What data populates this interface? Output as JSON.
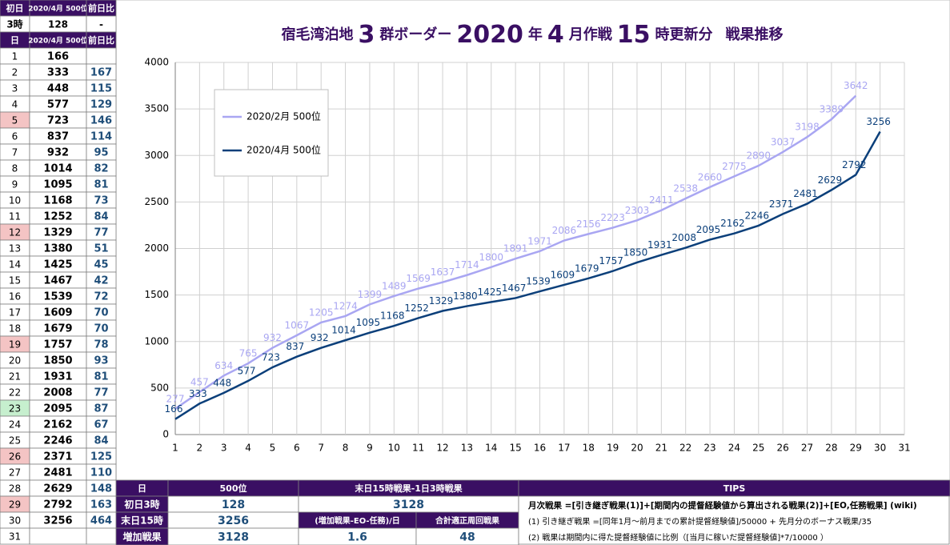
{
  "chart_data": {
    "type": "line",
    "title_parts": [
      "宿毛湾泊地",
      "3",
      "群ボーダー",
      "2020",
      "年",
      "4",
      "月作戦",
      "15",
      "時更新分",
      "戦果推移"
    ],
    "x": [
      1,
      2,
      3,
      4,
      5,
      6,
      7,
      8,
      9,
      10,
      11,
      12,
      13,
      14,
      15,
      16,
      17,
      18,
      19,
      20,
      21,
      22,
      23,
      24,
      25,
      26,
      27,
      28,
      29,
      30
    ],
    "series": [
      {
        "name": "2020/2月 500位",
        "color": "#a9a6f2",
        "values": [
          277,
          457,
          634,
          765,
          932,
          1067,
          1205,
          1274,
          1399,
          1489,
          1569,
          1637,
          1714,
          1800,
          1891,
          1971,
          2086,
          2156,
          2223,
          2303,
          2411,
          2538,
          2660,
          2775,
          2890,
          3037,
          3198,
          3389,
          3642,
          null
        ]
      },
      {
        "name": "2020/4月 500位",
        "color": "#0b3f7a",
        "values": [
          166,
          333,
          448,
          577,
          723,
          837,
          932,
          1014,
          1095,
          1168,
          1252,
          1329,
          1380,
          1425,
          1467,
          1539,
          1609,
          1679,
          1757,
          1850,
          1931,
          2008,
          2095,
          2162,
          2246,
          2371,
          2481,
          2629,
          2792,
          3256
        ]
      }
    ],
    "xlim": [
      1,
      31
    ],
    "xticks": [
      1,
      2,
      3,
      4,
      5,
      6,
      7,
      8,
      9,
      10,
      11,
      12,
      13,
      14,
      15,
      16,
      17,
      18,
      19,
      20,
      21,
      22,
      23,
      24,
      25,
      26,
      27,
      28,
      29,
      30,
      31
    ],
    "ylim": [
      0,
      4000
    ],
    "yticks": [
      0,
      500,
      1000,
      1500,
      2000,
      2500,
      3000,
      3500,
      4000
    ],
    "grid": true,
    "legend": "upper-left"
  },
  "left_table": {
    "header": [
      "初日",
      "2020/4月 500位",
      "前日比"
    ],
    "first": [
      "3時",
      128,
      "-"
    ],
    "columns": [
      "日",
      "2020/4月 500位",
      "前日比"
    ],
    "rows": [
      {
        "day": 1,
        "value": 166
      },
      {
        "day": 2,
        "value": 333,
        "diff": 167
      },
      {
        "day": 3,
        "value": 448,
        "diff": 115
      },
      {
        "day": 4,
        "value": 577,
        "diff": 129
      },
      {
        "day": 5,
        "value": 723,
        "diff": 146,
        "color": "#f4c4c4"
      },
      {
        "day": 6,
        "value": 837,
        "diff": 114
      },
      {
        "day": 7,
        "value": 932,
        "diff": 95
      },
      {
        "day": 8,
        "value": 1014,
        "diff": 82
      },
      {
        "day": 9,
        "value": 1095,
        "diff": 81
      },
      {
        "day": 10,
        "value": 1168,
        "diff": 73
      },
      {
        "day": 11,
        "value": 1252,
        "diff": 84
      },
      {
        "day": 12,
        "value": 1329,
        "diff": 77,
        "color": "#f4c4c4"
      },
      {
        "day": 13,
        "value": 1380,
        "diff": 51
      },
      {
        "day": 14,
        "value": 1425,
        "diff": 45
      },
      {
        "day": 15,
        "value": 1467,
        "diff": 42
      },
      {
        "day": 16,
        "value": 1539,
        "diff": 72
      },
      {
        "day": 17,
        "value": 1609,
        "diff": 70
      },
      {
        "day": 18,
        "value": 1679,
        "diff": 70
      },
      {
        "day": 19,
        "value": 1757,
        "diff": 78,
        "color": "#f4c4c4"
      },
      {
        "day": 20,
        "value": 1850,
        "diff": 93
      },
      {
        "day": 21,
        "value": 1931,
        "diff": 81
      },
      {
        "day": 22,
        "value": 2008,
        "diff": 77
      },
      {
        "day": 23,
        "value": 2095,
        "diff": 87,
        "color": "#c6efce"
      },
      {
        "day": 24,
        "value": 2162,
        "diff": 67
      },
      {
        "day": 25,
        "value": 2246,
        "diff": 84
      },
      {
        "day": 26,
        "value": 2371,
        "diff": 125,
        "color": "#f4c4c4"
      },
      {
        "day": 27,
        "value": 2481,
        "diff": 110
      },
      {
        "day": 28,
        "value": 2629,
        "diff": 148
      },
      {
        "day": 29,
        "value": 2792,
        "diff": 163,
        "color": "#f4c4c4"
      },
      {
        "day": 30,
        "value": 3256,
        "diff": 464
      },
      {
        "day": 31
      }
    ]
  },
  "summary": {
    "col_day": "日",
    "col_rank": "500位",
    "col_diff": "末日15時戦果-1日3時戦果",
    "col_tips": "TIPS",
    "rows": [
      {
        "label": "初日3時",
        "value": 128
      },
      {
        "label": "末日15時",
        "value": 3256
      },
      {
        "label": "増加戦果",
        "value": 3128
      }
    ],
    "diff_value": 3128,
    "sub_headers": [
      "(増加戦果-EO-任務)/日",
      "合計適正周回戦果"
    ],
    "sub_values": [
      1.6,
      48
    ],
    "tips": [
      "月次戦果 =[引き継ぎ戦果(1)]+[期間内の提督経験値から算出される戦果(2)]+[EO,任務戦果] (wiki)",
      "(1) 引き継ぎ戦果 =[同年1月～前月までの累計提督経験値]/50000 + 先月分のボーナス戦果/35",
      "(2) 戦果は期間内に得た提督経験値に比例（[当月に稼いだ提督経験値]*7/10000 ）"
    ]
  }
}
